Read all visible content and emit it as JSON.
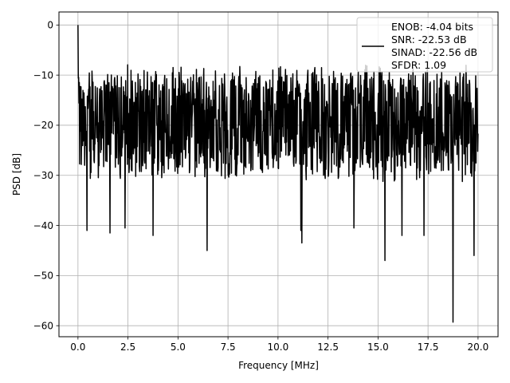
{
  "chart_data": {
    "type": "line",
    "title": "",
    "xlabel": "Frequency [MHz]",
    "ylabel": "PSD [dB]",
    "xlim": [
      -0.95,
      21.0
    ],
    "ylim": [
      -62.2,
      2.6
    ],
    "xticks": [
      0.0,
      2.5,
      5.0,
      7.5,
      10.0,
      12.5,
      15.0,
      17.5,
      20.0
    ],
    "xtick_labels": [
      "0.0",
      "2.5",
      "5.0",
      "7.5",
      "10.0",
      "12.5",
      "15.0",
      "17.5",
      "20.0"
    ],
    "yticks": [
      0,
      -10,
      -20,
      -30,
      -40,
      -50,
      -60
    ],
    "ytick_labels": [
      "0",
      "−10",
      "−20",
      "−30",
      "−40",
      "−50",
      "−60"
    ],
    "grid": true,
    "legend": {
      "placement": "upper-right",
      "entries": [
        "ENOB: -4.04 bits",
        "SNR: -22.53 dB",
        "SINAD: -22.56 dB",
        "SFDR: 1.09"
      ]
    },
    "series": [
      {
        "color": "#000000",
        "x_range": [
          0.0,
          20.0
        ],
        "points": 1200,
        "peak": {
          "x": 0.0,
          "y": 0.0
        },
        "noise_center_db": -19.5,
        "noise_upper_envelope_db": -7,
        "notable_dips": [
          {
            "x": 0.45,
            "y": -41
          },
          {
            "x": 1.6,
            "y": -41.5
          },
          {
            "x": 2.35,
            "y": -40.5
          },
          {
            "x": 3.75,
            "y": -42
          },
          {
            "x": 6.45,
            "y": -45
          },
          {
            "x": 11.2,
            "y": -43.5
          },
          {
            "x": 11.15,
            "y": -41
          },
          {
            "x": 13.8,
            "y": -40.5
          },
          {
            "x": 15.35,
            "y": -47
          },
          {
            "x": 16.2,
            "y": -42
          },
          {
            "x": 17.3,
            "y": -42
          },
          {
            "x": 18.75,
            "y": -59.3
          },
          {
            "x": 19.8,
            "y": -46
          }
        ]
      }
    ]
  }
}
